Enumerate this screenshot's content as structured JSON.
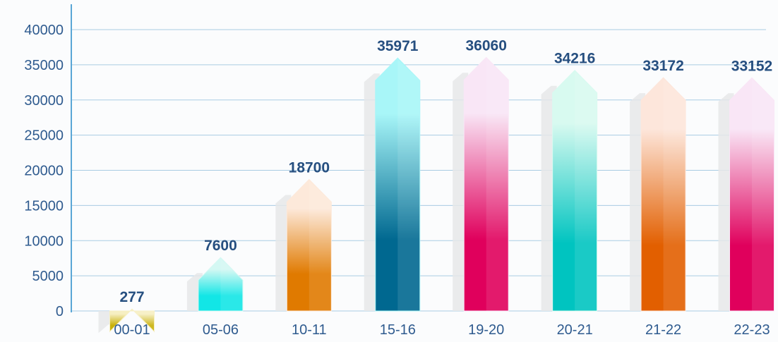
{
  "chart_data": {
    "type": "bar",
    "categories": [
      "00-01",
      "05-06",
      "10-11",
      "15-16",
      "19-20",
      "20-21",
      "21-22",
      "22-23"
    ],
    "values": [
      277,
      7600,
      18700,
      35971,
      36060,
      34216,
      33172,
      33152
    ],
    "value_labels": [
      "277",
      "7600",
      "18700",
      "35971",
      "36060",
      "34216",
      "33172",
      "33152"
    ],
    "title": "",
    "xlabel": "",
    "ylabel": "",
    "ylim": [
      0,
      40000
    ],
    "yticks": [
      0,
      5000,
      10000,
      15000,
      20000,
      25000,
      30000,
      35000,
      40000
    ],
    "ytick_labels": [
      "0",
      "5000",
      "10000",
      "15000",
      "20000",
      "25000",
      "30000",
      "35000",
      "40000"
    ],
    "grid": true,
    "legend": "none",
    "colors": {
      "axis": "#5aa6d6",
      "grid": "#a9cbe3",
      "tick_text": "#2f5b8f",
      "value_text": "#264f80",
      "bars": [
        {
          "light": "#f6efc2",
          "dark": "#c9b10a"
        },
        {
          "light": "#d4f8f3",
          "dark": "#12e6e6"
        },
        {
          "light": "#fde9da",
          "dark": "#e07a00"
        },
        {
          "light": "#a8f6f8",
          "dark": "#006890"
        },
        {
          "light": "#f9e6f6",
          "dark": "#e0005c"
        },
        {
          "light": "#d8faf0",
          "dark": "#00c4c0"
        },
        {
          "light": "#fde6db",
          "dark": "#e25f00"
        },
        {
          "light": "#f9e6f6",
          "dark": "#e0005c"
        }
      ]
    }
  }
}
